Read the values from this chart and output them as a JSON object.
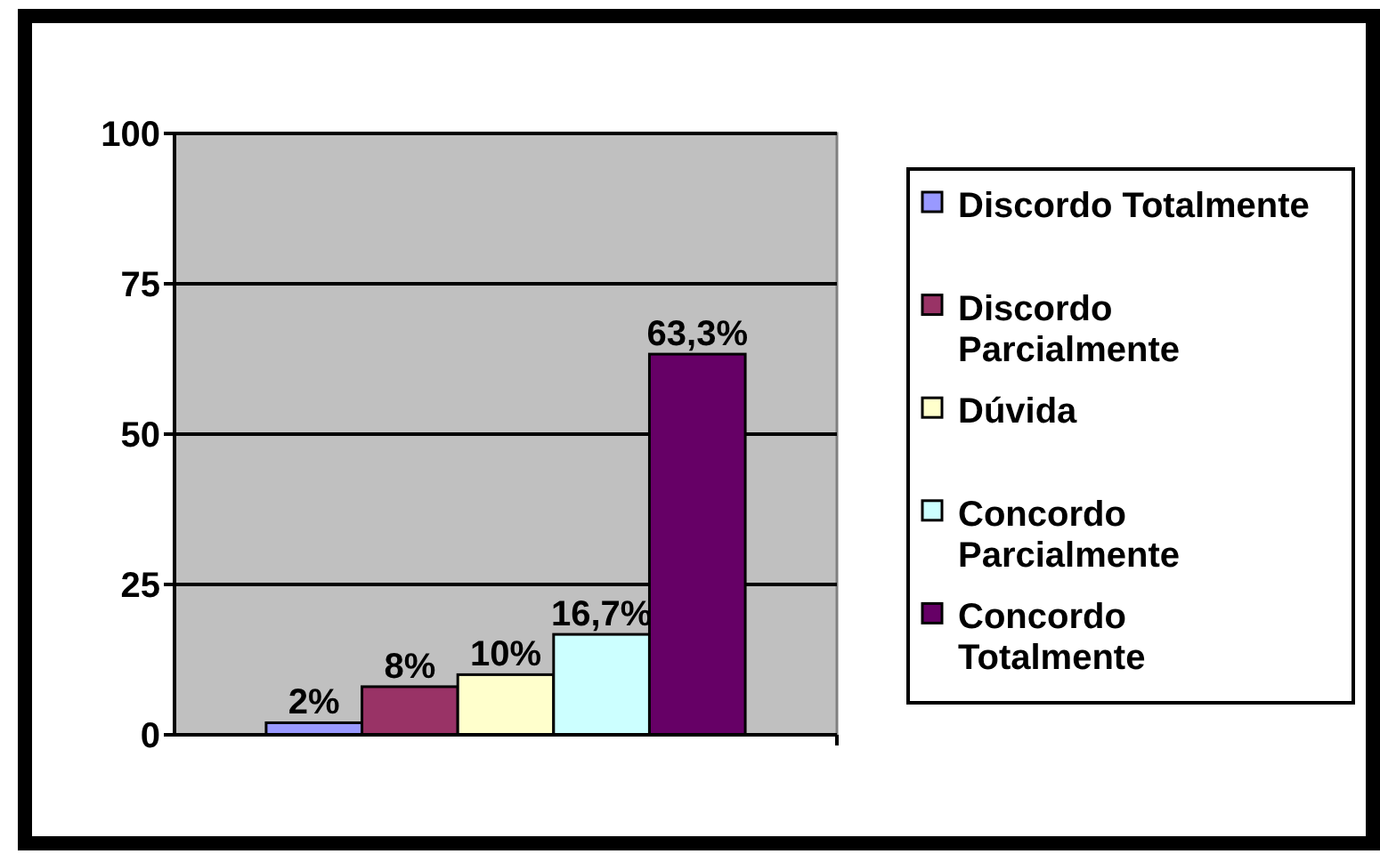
{
  "chart_data": {
    "type": "bar",
    "categories": [
      null
    ],
    "series": [
      {
        "name": "Discordo Totalmente",
        "color": "#9999ff",
        "values": [
          2
        ],
        "value_labels": [
          "2%"
        ]
      },
      {
        "name": "Discordo Parcialmente",
        "color": "#993366",
        "values": [
          8
        ],
        "value_labels": [
          "8%"
        ]
      },
      {
        "name": "Dúvida",
        "color": "#ffffcc",
        "values": [
          10
        ],
        "value_labels": [
          "10%"
        ]
      },
      {
        "name": "Concordo Parcialmente",
        "color": "#ccffff",
        "values": [
          16.7
        ],
        "value_labels": [
          "16,7%"
        ]
      },
      {
        "name": "Concordo Totalmente",
        "color": "#660066",
        "values": [
          63.3
        ],
        "value_labels": [
          "63,3%"
        ]
      }
    ],
    "ylim": [
      0,
      100
    ],
    "yticks": [
      0,
      25,
      50,
      75,
      100
    ],
    "grid": "y",
    "legend": "right"
  }
}
